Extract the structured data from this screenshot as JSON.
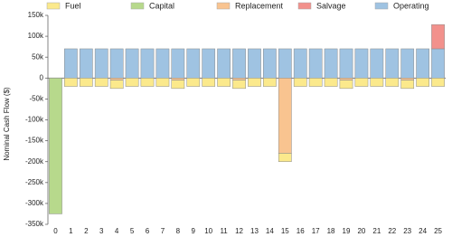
{
  "chart_data": {
    "type": "stacked-bar",
    "ylabel": "Nominal Cash Flow ($)",
    "categories": [
      "0",
      "1",
      "2",
      "3",
      "4",
      "5",
      "6",
      "7",
      "8",
      "9",
      "10",
      "11",
      "12",
      "13",
      "14",
      "15",
      "16",
      "17",
      "18",
      "19",
      "20",
      "21",
      "22",
      "23",
      "24",
      "25"
    ],
    "series": [
      {
        "name": "Fuel",
        "color": "#fbe98c",
        "values": [
          0,
          -20000,
          -20000,
          -20000,
          -20000,
          -20000,
          -20000,
          -20000,
          -20000,
          -20000,
          -20000,
          -20000,
          -20000,
          -20000,
          -20000,
          -20000,
          -20000,
          -20000,
          -20000,
          -20000,
          -20000,
          -20000,
          -20000,
          -20000,
          -20000,
          -20000
        ]
      },
      {
        "name": "Capital",
        "color": "#b7d98c",
        "values": [
          -325000,
          0,
          0,
          0,
          0,
          0,
          0,
          0,
          0,
          0,
          0,
          0,
          0,
          0,
          0,
          0,
          0,
          0,
          0,
          0,
          0,
          0,
          0,
          0,
          0,
          0
        ]
      },
      {
        "name": "Replacement",
        "color": "#f9c490",
        "values": [
          0,
          0,
          0,
          0,
          -5000,
          0,
          0,
          0,
          -5000,
          0,
          0,
          0,
          -5000,
          0,
          0,
          -180000,
          0,
          0,
          0,
          -5000,
          0,
          0,
          0,
          -5000,
          0,
          0
        ]
      },
      {
        "name": "Salvage",
        "color": "#f2918c",
        "values": [
          0,
          0,
          0,
          0,
          0,
          0,
          0,
          0,
          0,
          0,
          0,
          0,
          0,
          0,
          0,
          0,
          0,
          0,
          0,
          0,
          0,
          0,
          0,
          0,
          0,
          58000
        ]
      },
      {
        "name": "Operating",
        "color": "#9fc3e2",
        "values": [
          0,
          70000,
          70000,
          70000,
          70000,
          70000,
          70000,
          70000,
          70000,
          70000,
          70000,
          70000,
          70000,
          70000,
          70000,
          70000,
          70000,
          70000,
          70000,
          70000,
          70000,
          70000,
          70000,
          70000,
          70000,
          70000
        ]
      }
    ],
    "ylim": [
      -350000,
      150000
    ],
    "yticks": [
      {
        "value": 150000,
        "label": "150k"
      },
      {
        "value": 100000,
        "label": "100k"
      },
      {
        "value": 50000,
        "label": "50k"
      },
      0,
      {
        "value": -50000,
        "label": "-50k"
      },
      {
        "value": -100000,
        "label": "-100k"
      },
      {
        "value": -150000,
        "label": "-150k"
      },
      {
        "value": -200000,
        "label": "-200k"
      },
      {
        "value": -250000,
        "label": "-250k"
      },
      {
        "value": -300000,
        "label": "-300k"
      },
      {
        "value": -350000,
        "label": "-350k"
      }
    ]
  }
}
